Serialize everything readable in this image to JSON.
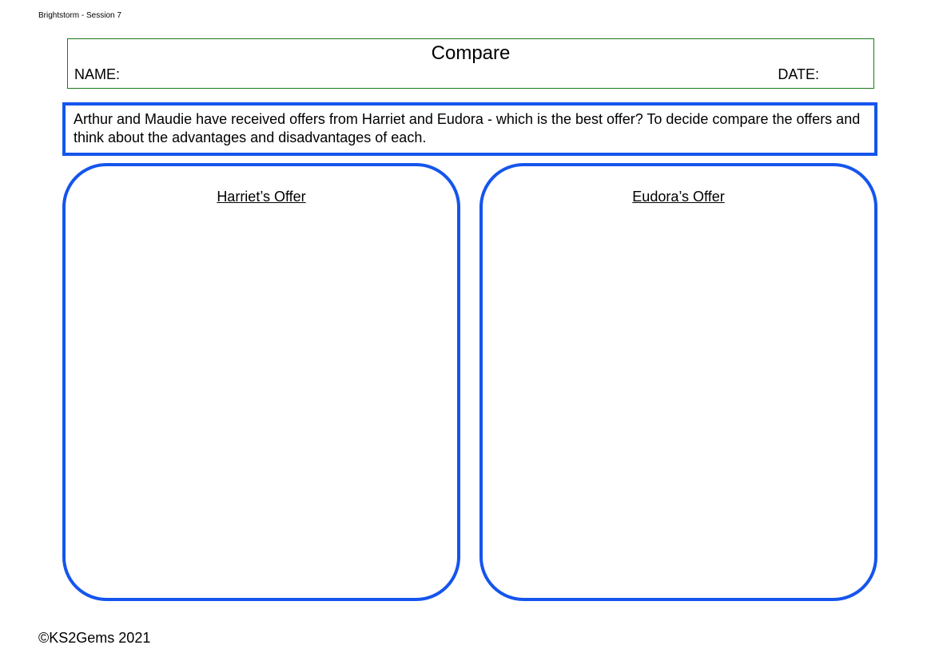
{
  "page_header": "Brightstorm - Session 7",
  "title_box": {
    "title": "Compare",
    "name_label": "NAME:",
    "date_label": "DATE:",
    "border_color": "#1a7a1a"
  },
  "task_box": {
    "text": "Arthur and Maudie have received offers from Harriet and Eudora - which is the best offer? To decide compare the offers and think about the advantages and disadvantages of each.",
    "border_color": "#1555ed",
    "border_width": 4
  },
  "compare": {
    "left_title": "Harriet’s Offer",
    "right_title": "Eudora’s Offer",
    "border_color": "#1555ed",
    "border_width": 4,
    "border_radius": 55
  },
  "footer": "©KS2Gems 2021",
  "fonts": {
    "family": "Comic Sans MS",
    "title_size_pt": 24,
    "body_size_pt": 18,
    "header_size_pt": 10
  },
  "colors": {
    "background": "#ffffff",
    "text": "#000000",
    "blue": "#1555ed",
    "green": "#1a7a1a"
  }
}
